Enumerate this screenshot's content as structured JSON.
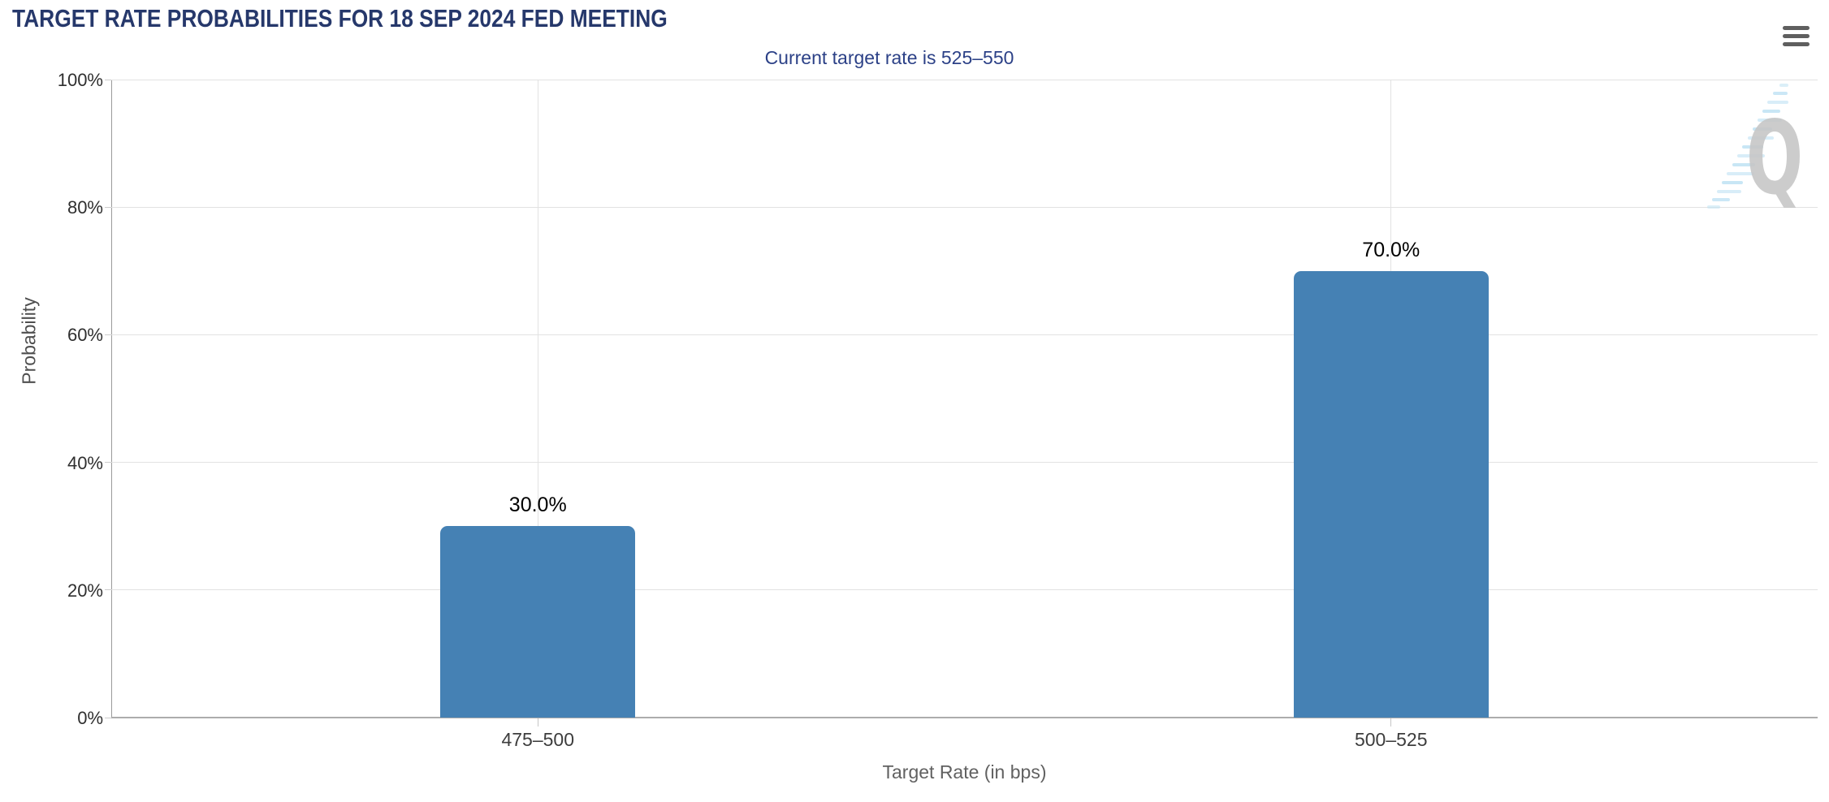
{
  "menu": {
    "icon": "hamburger-menu-icon"
  },
  "watermark": {
    "letter": "Q"
  },
  "colors": {
    "bar": "#4581b4",
    "title_text": "#26386b",
    "subtitle_text": "#2c4187",
    "axis_title_text": "#565656",
    "tick_label_text": "#333333",
    "value_label_text": "#000000",
    "gridline": "#e2e2e2",
    "axis_line": "#a6a6a6",
    "menu_icon": "#5f5f5f",
    "watermark_gray": "#c6c6c6",
    "watermark_blue": "#bfe2f4"
  },
  "chart_data": {
    "type": "bar",
    "title": "TARGET RATE PROBABILITIES FOR 18 SEP 2024 FED MEETING",
    "subtitle": "Current target rate is 525–550",
    "xlabel": "Target Rate (in bps)",
    "ylabel": "Probability",
    "categories": [
      "475–500",
      "500–525"
    ],
    "values": [
      30.0,
      70.0
    ],
    "value_labels": [
      "30.0%",
      "70.0%"
    ],
    "ylim": [
      0,
      100
    ],
    "y_ticks": [
      {
        "value": 0,
        "label": "0%"
      },
      {
        "value": 20,
        "label": "20%"
      },
      {
        "value": 40,
        "label": "40%"
      },
      {
        "value": 60,
        "label": "60%"
      },
      {
        "value": 80,
        "label": "80%"
      },
      {
        "value": 100,
        "label": "100%"
      }
    ],
    "grid": true,
    "legend": "none",
    "bar_color": "#4581b4"
  }
}
